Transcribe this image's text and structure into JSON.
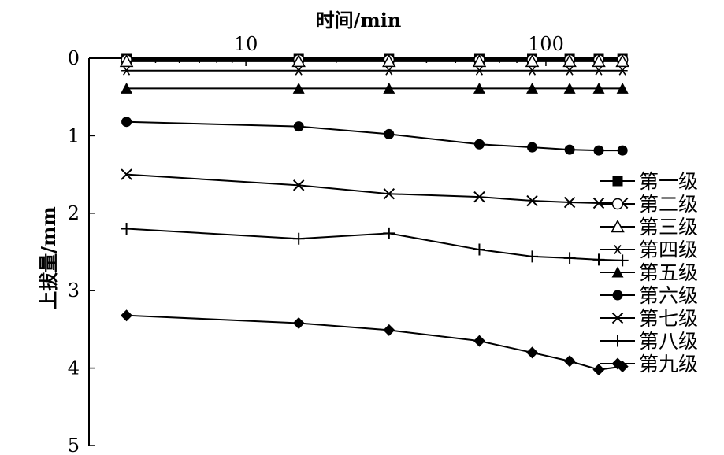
{
  "chart_data": {
    "type": "line",
    "xlabel": "时间/min",
    "ylabel": "上拔量/mm",
    "x_scale": "log",
    "x_axis_position": "top",
    "y_inverted": true,
    "xlim": [
      3,
      150
    ],
    "ylim": [
      0,
      5
    ],
    "x_ticks": [
      10,
      100
    ],
    "x_tick_labels": [
      "10",
      "100"
    ],
    "y_ticks": [
      0,
      1,
      2,
      3,
      4,
      5
    ],
    "y_tick_labels": [
      "0",
      "1",
      "2",
      "3",
      "4",
      "5"
    ],
    "x": [
      4,
      15,
      30,
      60,
      90,
      120,
      150,
      180
    ],
    "legend_position": "right",
    "grid": false,
    "series": [
      {
        "name": "第一级",
        "marker": "square-filled",
        "values": [
          0,
          0,
          0,
          0,
          0,
          0,
          0,
          0
        ]
      },
      {
        "name": "第二级",
        "marker": "circle-open",
        "values": [
          0.02,
          0.02,
          0.02,
          0.02,
          0.02,
          0.02,
          0.02,
          0.02
        ]
      },
      {
        "name": "第三级",
        "marker": "triangle-open",
        "values": [
          0.04,
          0.04,
          0.04,
          0.04,
          0.04,
          0.04,
          0.04,
          0.04
        ]
      },
      {
        "name": "第四级",
        "marker": "asterisk",
        "values": [
          0.16,
          0.16,
          0.16,
          0.16,
          0.16,
          0.16,
          0.16,
          0.16
        ]
      },
      {
        "name": "第五级",
        "marker": "triangle-filled",
        "values": [
          0.39,
          0.39,
          0.39,
          0.39,
          0.39,
          0.39,
          0.39,
          0.39
        ]
      },
      {
        "name": "第六级",
        "marker": "circle-filled",
        "values": [
          0.82,
          0.88,
          0.98,
          1.11,
          1.15,
          1.18,
          1.19,
          1.19
        ]
      },
      {
        "name": "第七级",
        "marker": "x",
        "values": [
          1.5,
          1.64,
          1.75,
          1.79,
          1.84,
          1.86,
          1.87,
          1.87
        ]
      },
      {
        "name": "第八级",
        "marker": "plus",
        "values": [
          2.2,
          2.33,
          2.26,
          2.47,
          2.56,
          2.58,
          2.6,
          2.61
        ]
      },
      {
        "name": "第九级",
        "marker": "diamond-filled",
        "values": [
          3.32,
          3.42,
          3.51,
          3.65,
          3.8,
          3.91,
          4.02,
          3.98
        ]
      }
    ]
  }
}
